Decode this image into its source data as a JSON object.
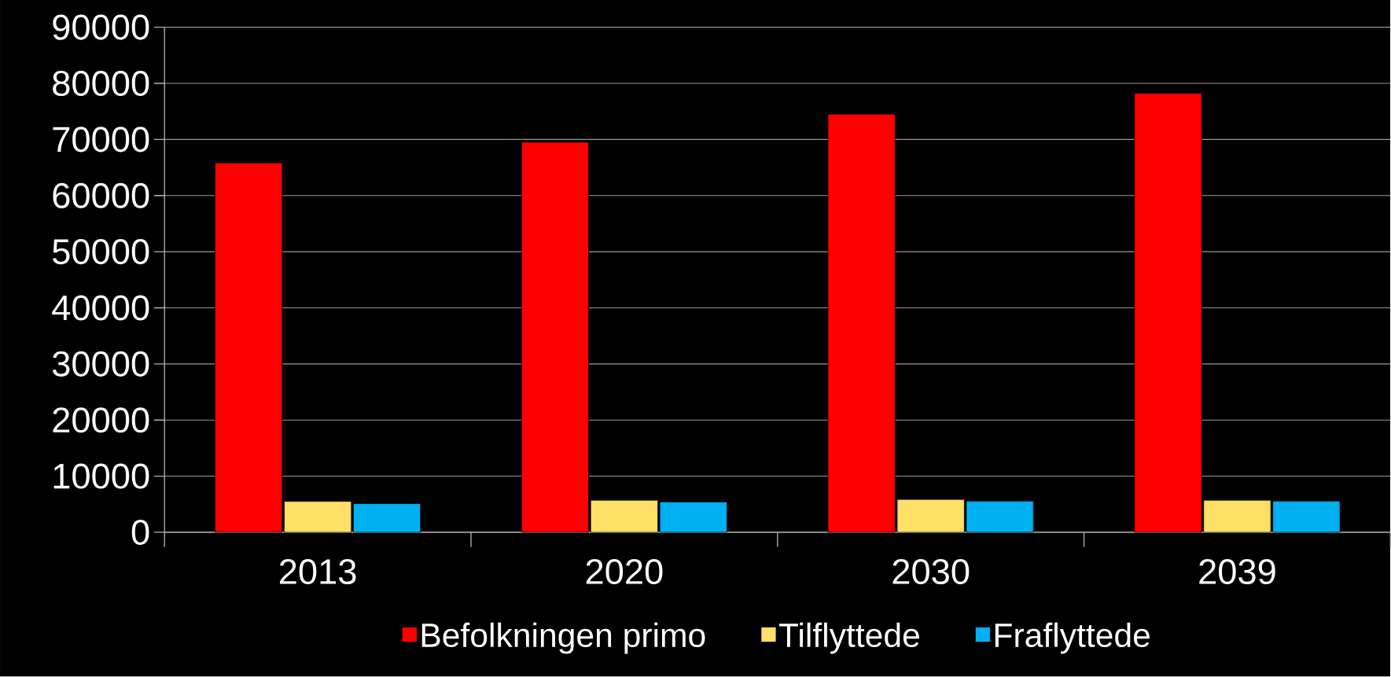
{
  "chart_data": {
    "type": "bar",
    "categories": [
      "2013",
      "2020",
      "2030",
      "2039"
    ],
    "series": [
      {
        "name": "Befolkningen primo",
        "color": "#ff0000",
        "values": [
          65800,
          69500,
          74500,
          78200
        ]
      },
      {
        "name": "Tilflyttede",
        "color": "#ffe066",
        "values": [
          5500,
          5700,
          5850,
          5700
        ]
      },
      {
        "name": "Fraflyttede",
        "color": "#00b0f0",
        "values": [
          5100,
          5400,
          5550,
          5550
        ]
      }
    ],
    "ylim": [
      0,
      90000
    ],
    "yticks": [
      0,
      10000,
      20000,
      30000,
      40000,
      50000,
      60000,
      70000,
      80000,
      90000
    ],
    "grid": "y",
    "legend": "bottom"
  }
}
